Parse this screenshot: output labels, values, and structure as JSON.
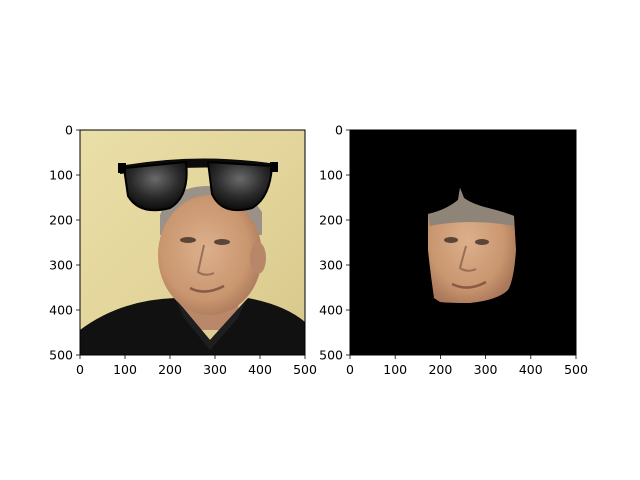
{
  "chart_data": [
    {
      "type": "image",
      "xlim": [
        0,
        500
      ],
      "ylim": [
        500,
        0
      ],
      "x_ticks": [
        0,
        100,
        200,
        300,
        400,
        500
      ],
      "y_ticks": [
        0,
        100,
        200,
        300,
        400,
        500
      ],
      "x_tick_labels": [
        "0",
        "100",
        "200",
        "300",
        "400",
        "500"
      ],
      "y_tick_labels": [
        "0",
        "100",
        "200",
        "300",
        "400",
        "500"
      ],
      "image_description": "portrait photo of a man in a dark jacket with cartoon black sunglasses overlaid across the top of the head",
      "colors": {
        "background": "#e3d59b",
        "jacket": "#111111",
        "skin": "#d1a47f",
        "sunglasses": "#0b0b0b"
      }
    },
    {
      "type": "image",
      "xlim": [
        0,
        500
      ],
      "ylim": [
        500,
        0
      ],
      "x_ticks": [
        0,
        100,
        200,
        300,
        400,
        500
      ],
      "y_ticks": [
        0,
        100,
        200,
        300,
        400,
        500
      ],
      "x_tick_labels": [
        "0",
        "100",
        "200",
        "300",
        "400",
        "500"
      ],
      "y_tick_labels": [
        "0",
        "100",
        "200",
        "300",
        "400",
        "500"
      ],
      "image_description": "segmented face region on a black background",
      "colors": {
        "background": "#000000",
        "skin": "#cf9f7a"
      }
    }
  ]
}
